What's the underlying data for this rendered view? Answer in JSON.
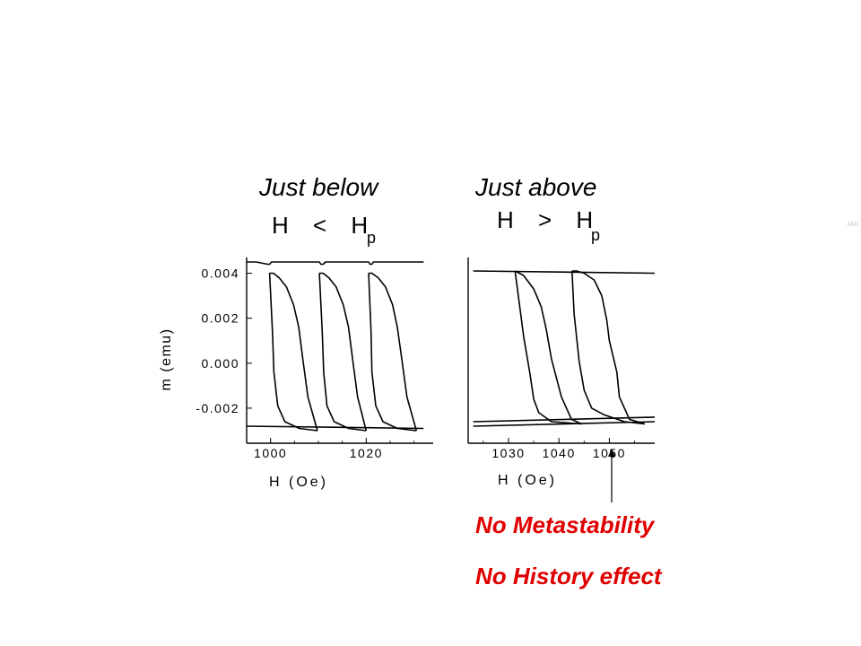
{
  "headings": {
    "left_title": "Just below",
    "left_expr": "H < H",
    "left_sub": "p",
    "right_title": "Just above",
    "right_expr": "H > H",
    "right_sub": "p"
  },
  "notes": {
    "line1": "No Metastability",
    "line2": "No History effect",
    "corner_mark": "JAG"
  },
  "colors": {
    "curve": "#000000",
    "note": "#e00000",
    "background": "#ffffff"
  },
  "chart_data": [
    {
      "type": "line",
      "title": "",
      "xlabel": "H (Oe)",
      "ylabel": "m (emu)",
      "xlim": [
        995,
        1034
      ],
      "ylim": [
        -0.0034,
        0.0047
      ],
      "xticks": [
        "1000",
        "1020"
      ],
      "xtick_values": [
        1000,
        1020
      ],
      "yticks": [
        "0.004",
        "0.002",
        "0.000",
        "-0.002"
      ],
      "ytick_values": [
        0.004,
        0.002,
        0.0,
        -0.002
      ],
      "series": [
        {
          "x": [
            1032,
            1030,
            1027,
            1024.5,
            1022.5,
            1021.5,
            1021.2,
            1020.8,
            1020.5,
            1019.2,
            1015,
            1011.5,
            1011,
            1010.5,
            1010.2,
            1009.7,
            1008.5,
            1004,
            1001,
            1000.2,
            999.8,
            999.4,
            997,
            995
          ],
          "y": [
            0.0045,
            0.0045,
            0.0045,
            0.0045,
            0.0045,
            0.0045,
            0.0044,
            0.0044,
            0.0045,
            0.0045,
            0.0045,
            0.0045,
            0.0044,
            0.0044,
            0.0045,
            0.0045,
            0.0045,
            0.0045,
            0.0045,
            0.0045,
            0.0044,
            0.0044,
            0.0045,
            0.0045
          ]
        },
        {
          "x": [
            1020.5,
            1021.2,
            1022.5,
            1024,
            1025.5,
            1026.5,
            1027.5,
            1028.5,
            1030.5
          ],
          "y": [
            0.004,
            0.004,
            0.0038,
            0.0034,
            0.0026,
            0.0016,
            0.0001,
            -0.0015,
            -0.003
          ]
        },
        {
          "x": [
            1030.5,
            1026.5,
            1023.5,
            1022,
            1021.2,
            1021,
            1020.5
          ],
          "y": [
            -0.003,
            -0.0029,
            -0.0026,
            -0.0019,
            -0.0004,
            0.0014,
            0.004
          ]
        },
        {
          "x": [
            1010.2,
            1011,
            1012.2,
            1013.7,
            1015.2,
            1016.3,
            1017.2,
            1018.2,
            1020.0
          ],
          "y": [
            0.004,
            0.004,
            0.0038,
            0.0034,
            0.0026,
            0.0016,
            0.0001,
            -0.0015,
            -0.003
          ]
        },
        {
          "x": [
            1020.0,
            1016.3,
            1013.3,
            1011.8,
            1011.1,
            1010.8,
            1010.2
          ],
          "y": [
            -0.003,
            -0.0029,
            -0.0026,
            -0.0019,
            -0.0004,
            0.0014,
            0.004
          ]
        },
        {
          "x": [
            999.8,
            1000.6,
            1001.8,
            1003.3,
            1004.8,
            1005.9,
            1006.8,
            1007.8,
            1009.8
          ],
          "y": [
            0.004,
            0.004,
            0.0038,
            0.0034,
            0.0026,
            0.0016,
            0.0001,
            -0.0015,
            -0.003
          ]
        },
        {
          "x": [
            1009.8,
            1006,
            1003,
            1001.5,
            1000.7,
            1000.4,
            999.8
          ],
          "y": [
            -0.003,
            -0.0029,
            -0.0026,
            -0.0019,
            -0.0004,
            0.0014,
            0.004
          ]
        },
        {
          "x": [
            995,
            1032
          ],
          "y": [
            -0.0028,
            -0.0029
          ]
        }
      ]
    },
    {
      "type": "line",
      "title": "",
      "xlabel": "H (Oe)",
      "ylabel": "",
      "xlim": [
        1022,
        1059
      ],
      "ylim": [
        -0.0034,
        0.0047
      ],
      "xticks": [
        "1030",
        "1040",
        "1050"
      ],
      "xtick_values": [
        1030,
        1040,
        1050
      ],
      "yticks": [],
      "series": [
        {
          "x": [
            1023,
            1059
          ],
          "y": [
            0.0041,
            0.004
          ]
        },
        {
          "x": [
            1042.6,
            1043.5,
            1045,
            1047,
            1048.5,
            1049.5,
            1050,
            1051.5,
            1052,
            1054,
            1057
          ],
          "y": [
            0.0041,
            0.0041,
            0.004,
            0.0037,
            0.003,
            0.0019,
            0.001,
            -0.0004,
            -0.0015,
            -0.0025,
            -0.0027
          ]
        },
        {
          "x": [
            1057,
            1053,
            1049,
            1046.5,
            1045,
            1044,
            1043,
            1042.6
          ],
          "y": [
            -0.0027,
            -0.0026,
            -0.0023,
            -0.002,
            -0.0012,
            0.0001,
            0.0022,
            0.0041
          ]
        },
        {
          "x": [
            1031.3,
            1033,
            1035,
            1036.5,
            1037.5,
            1038.5,
            1040.5,
            1042.5,
            1044.5
          ],
          "y": [
            0.0041,
            0.0039,
            0.0033,
            0.0025,
            0.0015,
            0.0002,
            -0.0015,
            -0.0025,
            -0.0027
          ]
        },
        {
          "x": [
            1044.5,
            1038.5,
            1036,
            1035,
            1034.2,
            1033,
            1031.3
          ],
          "y": [
            -0.0027,
            -0.0026,
            -0.0022,
            -0.0016,
            -0.0004,
            0.0012,
            0.0041
          ]
        },
        {
          "x": [
            1023,
            1059
          ],
          "y": [
            -0.0026,
            -0.0024
          ]
        },
        {
          "x": [
            1023,
            1059
          ],
          "y": [
            -0.0028,
            -0.0026
          ]
        }
      ]
    }
  ]
}
